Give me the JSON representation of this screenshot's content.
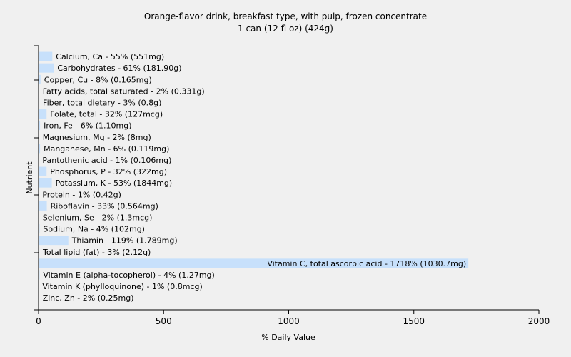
{
  "chart_data": {
    "type": "bar",
    "orientation": "horizontal",
    "title": "Orange-flavor drink, breakfast type, with pulp, frozen concentrate",
    "subtitle": "1 can (12 fl oz) (424g)",
    "xlabel": "% Daily Value",
    "ylabel": "Nutrient",
    "xlim": [
      0,
      2000
    ],
    "xticks": [
      "0",
      "500",
      "1000",
      "1500",
      "2000"
    ],
    "grid": false,
    "bar_color": "#c7e0fb",
    "categories": [
      "Calcium, Ca - 55% (551mg)",
      "Carbohydrates - 61% (181.90g)",
      "Copper, Cu - 8% (0.165mg)",
      "Fatty acids, total saturated - 2% (0.331g)",
      "Fiber, total dietary - 3% (0.8g)",
      "Folate, total - 32% (127mcg)",
      "Iron, Fe - 6% (1.10mg)",
      "Magnesium, Mg - 2% (8mg)",
      "Manganese, Mn - 6% (0.119mg)",
      "Pantothenic acid - 1% (0.106mg)",
      "Phosphorus, P - 32% (322mg)",
      "Potassium, K - 53% (1844mg)",
      "Protein - 1% (0.42g)",
      "Riboflavin - 33% (0.564mg)",
      "Selenium, Se - 2% (1.3mcg)",
      "Sodium, Na - 4% (102mg)",
      "Thiamin - 119% (1.789mg)",
      "Total lipid (fat) - 3% (2.12g)",
      "Vitamin C, total ascorbic acid - 1718% (1030.7mg)",
      "Vitamin E (alpha-tocopherol) - 4% (1.27mg)",
      "Vitamin K (phylloquinone) - 1% (0.8mcg)",
      "Zinc, Zn - 2% (0.25mg)"
    ],
    "values": [
      55,
      61,
      8,
      2,
      3,
      32,
      6,
      2,
      6,
      1,
      32,
      53,
      1,
      33,
      2,
      4,
      119,
      3,
      1718,
      4,
      1,
      2
    ]
  }
}
